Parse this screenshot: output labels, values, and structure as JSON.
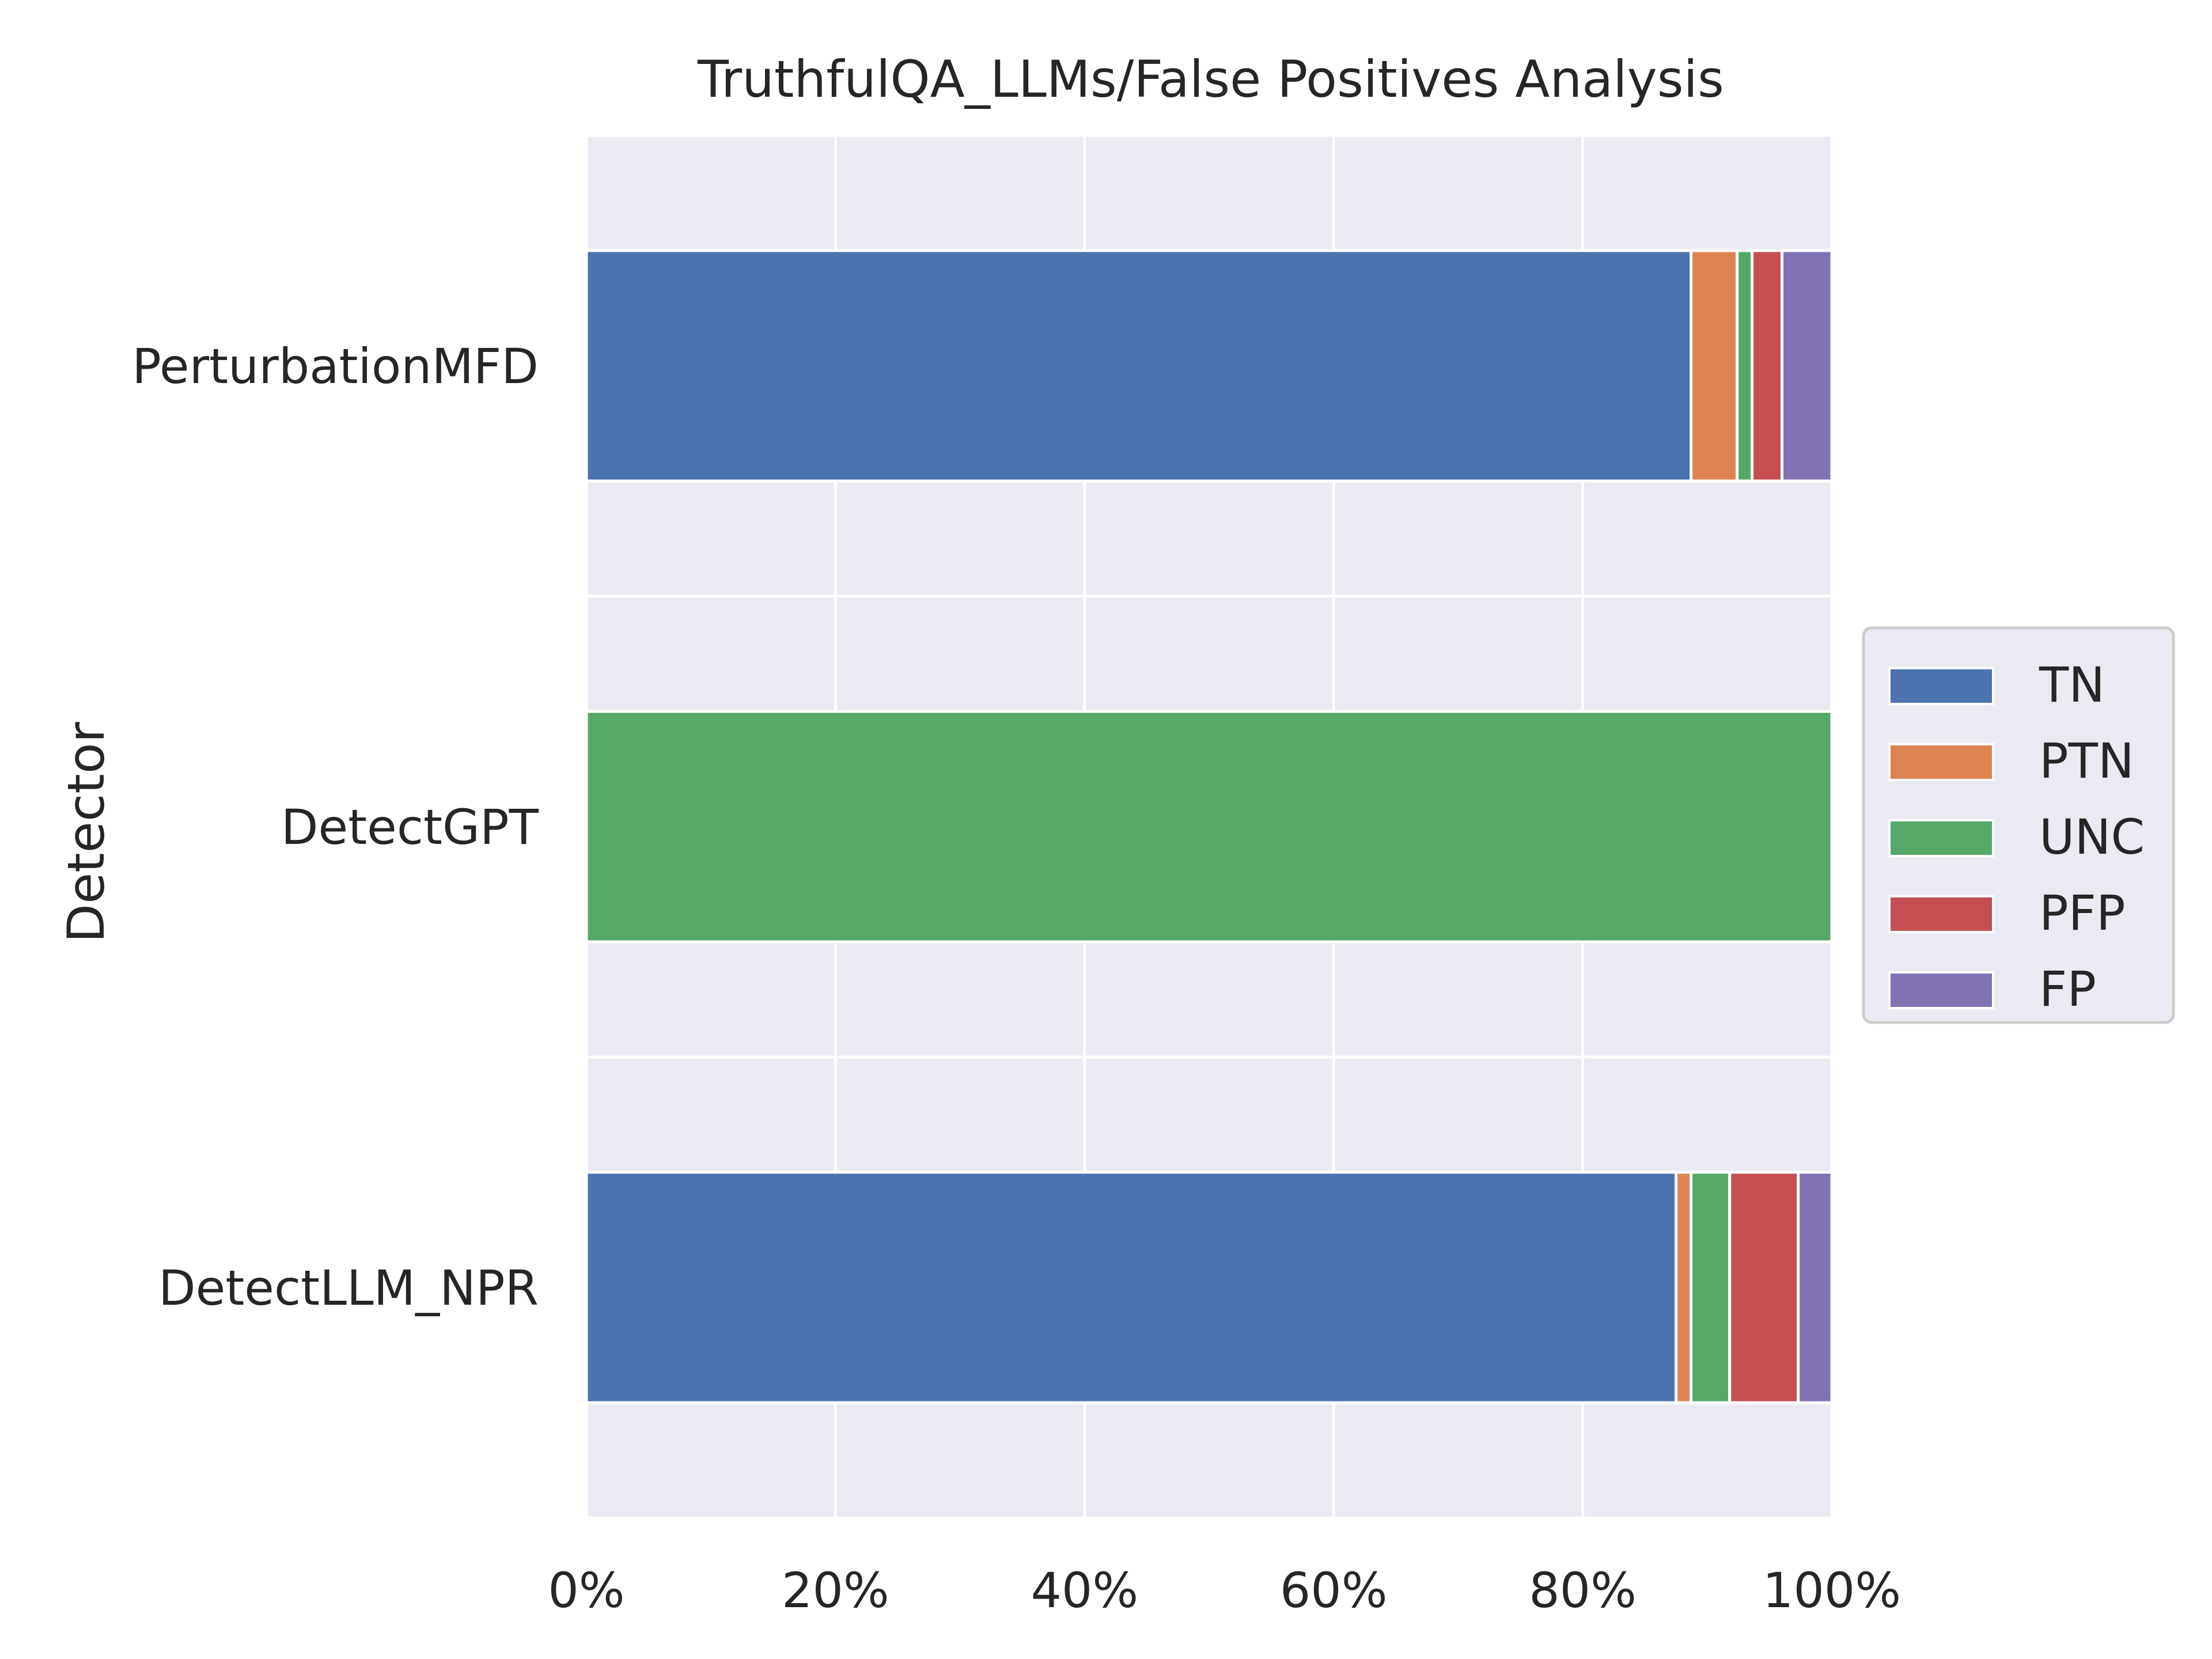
{
  "chart_data": {
    "type": "bar",
    "orientation": "horizontal",
    "stacked": true,
    "title": "TruthfulQA_LLMs/False Positives Analysis",
    "xlabel": "",
    "ylabel": "Detector",
    "xlim": [
      0,
      100
    ],
    "x_ticks": [
      "0%",
      "20%",
      "40%",
      "60%",
      "80%",
      "100%"
    ],
    "x_tick_values": [
      0,
      20,
      40,
      60,
      80,
      100
    ],
    "categories": [
      "PerturbationMFD",
      "DetectGPT",
      "DetectLLM_NPR"
    ],
    "series": [
      {
        "name": "TN",
        "color": "#4c72b0",
        "values": [
          88.7,
          0,
          87.5
        ]
      },
      {
        "name": "PTN",
        "color": "#dd8452",
        "values": [
          3.7,
          0,
          1.2
        ]
      },
      {
        "name": "UNC",
        "color": "#55a868",
        "values": [
          1.2,
          100,
          3.1
        ]
      },
      {
        "name": "PFP",
        "color": "#c44e52",
        "values": [
          2.4,
          0,
          5.5
        ]
      },
      {
        "name": "FP",
        "color": "#8172b3",
        "values": [
          4.0,
          0,
          2.7
        ]
      }
    ],
    "grid": true,
    "background_color": "#eaeaf2",
    "legend_position": "center-right"
  }
}
